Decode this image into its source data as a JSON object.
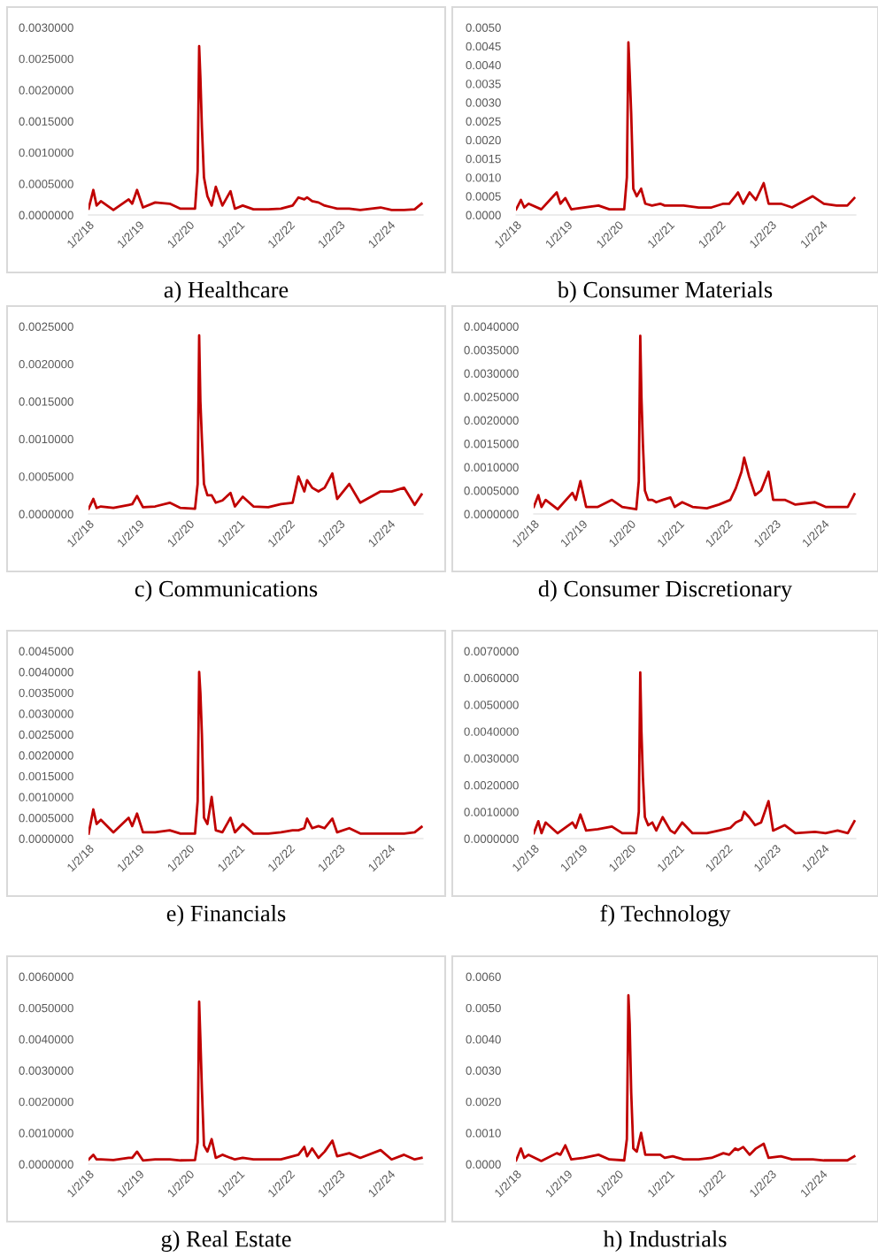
{
  "chart_data": [
    {
      "type": "line",
      "title": "a) Healthcare",
      "x": [
        "2018-01-02",
        "2018-02-05",
        "2018-03-01",
        "2018-04-01",
        "2018-07-01",
        "2018-10-20",
        "2018-11-15",
        "2018-12-20",
        "2019-02-01",
        "2019-05-01",
        "2019-08-15",
        "2019-11-01",
        "2020-02-15",
        "2020-03-05",
        "2020-03-16",
        "2020-03-25",
        "2020-04-05",
        "2020-04-20",
        "2020-05-15",
        "2020-06-15",
        "2020-07-15",
        "2020-09-01",
        "2020-10-30",
        "2020-12-01",
        "2021-01-27",
        "2021-04-15",
        "2021-08-01",
        "2021-11-01",
        "2022-01-25",
        "2022-03-08",
        "2022-04-20",
        "2022-05-10",
        "2022-06-16",
        "2022-08-01",
        "2022-09-15",
        "2022-11-10",
        "2022-12-15",
        "2023-03-13",
        "2023-06-01",
        "2023-10-27",
        "2024-01-15",
        "2024-04-15",
        "2024-07-01",
        "2024-08-20"
      ],
      "series": [
        {
          "color": "#c00000",
          "values": [
            0.0001,
            0.0004,
            0.00015,
            0.00022,
            8e-05,
            0.00025,
            0.00018,
            0.0004,
            0.00012,
            0.0002,
            0.00018,
            0.0001,
            0.0001,
            0.0007,
            0.0027,
            0.0022,
            0.0014,
            0.0006,
            0.0003,
            0.00015,
            0.00045,
            0.00015,
            0.00038,
            0.0001,
            0.00015,
            9e-05,
            9e-05,
            0.0001,
            0.00015,
            0.00028,
            0.00025,
            0.00028,
            0.00022,
            0.0002,
            0.00015,
            0.00012,
            0.0001,
            0.0001,
            8e-05,
            0.00012,
            8e-05,
            8e-05,
            9e-05,
            0.00018
          ]
        }
      ],
      "xlim": [
        "2018-01-01",
        "2024-08-31"
      ],
      "xticks": [
        {
          "value": "2018-01-02",
          "label": "1/2/18"
        },
        {
          "value": "2019-01-02",
          "label": "1/2/19"
        },
        {
          "value": "2020-01-02",
          "label": "1/2/20"
        },
        {
          "value": "2021-01-02",
          "label": "1/2/21"
        },
        {
          "value": "2022-01-02",
          "label": "1/2/22"
        },
        {
          "value": "2023-01-02",
          "label": "1/2/23"
        },
        {
          "value": "2024-01-02",
          "label": "1/2/24"
        }
      ],
      "ylim": [
        0,
        0.003
      ],
      "yticks": [
        {
          "value": 0,
          "label": "0.0000000"
        },
        {
          "value": 0.0005,
          "label": "0.0005000"
        },
        {
          "value": 0.001,
          "label": "0.0010000"
        },
        {
          "value": 0.0015,
          "label": "0.0015000"
        },
        {
          "value": 0.002,
          "label": "0.0020000"
        },
        {
          "value": 0.0025,
          "label": "0.0025000"
        },
        {
          "value": 0.003,
          "label": "0.0030000"
        }
      ]
    },
    {
      "type": "line",
      "title": "b) Consumer Materials",
      "x": [
        "2018-01-02",
        "2018-02-05",
        "2018-03-01",
        "2018-04-01",
        "2018-07-01",
        "2018-10-20",
        "2018-11-15",
        "2018-12-20",
        "2019-02-01",
        "2019-05-01",
        "2019-08-15",
        "2019-11-01",
        "2020-02-15",
        "2020-03-05",
        "2020-03-16",
        "2020-03-25",
        "2020-04-05",
        "2020-04-20",
        "2020-05-15",
        "2020-06-15",
        "2020-07-15",
        "2020-09-01",
        "2020-10-30",
        "2020-12-01",
        "2021-01-27",
        "2021-04-15",
        "2021-08-01",
        "2021-11-01",
        "2022-01-25",
        "2022-03-08",
        "2022-04-20",
        "2022-05-10",
        "2022-06-16",
        "2022-08-01",
        "2022-09-15",
        "2022-11-10",
        "2022-12-15",
        "2023-03-13",
        "2023-06-01",
        "2023-10-27",
        "2024-01-15",
        "2024-04-15",
        "2024-07-01",
        "2024-08-20"
      ],
      "series": [
        {
          "color": "#c00000",
          "values": [
            0.00015,
            0.0004,
            0.0002,
            0.0003,
            0.00015,
            0.0006,
            0.0003,
            0.00045,
            0.00015,
            0.0002,
            0.00025,
            0.00015,
            0.00015,
            0.001,
            0.0046,
            0.0038,
            0.0027,
            0.0007,
            0.0005,
            0.0007,
            0.0003,
            0.00025,
            0.0003,
            0.00025,
            0.00025,
            0.00025,
            0.0002,
            0.0002,
            0.0003,
            0.0003,
            0.0005,
            0.0006,
            0.0003,
            0.0006,
            0.0004,
            0.00085,
            0.0003,
            0.0003,
            0.0002,
            0.0005,
            0.0003,
            0.00025,
            0.00025,
            0.00045
          ]
        }
      ],
      "xlim": [
        "2018-01-01",
        "2024-08-31"
      ],
      "xticks": [
        {
          "value": "2018-01-02",
          "label": "1/2/18"
        },
        {
          "value": "2019-01-02",
          "label": "1/2/19"
        },
        {
          "value": "2020-01-02",
          "label": "1/2/20"
        },
        {
          "value": "2021-01-02",
          "label": "1/2/21"
        },
        {
          "value": "2022-01-02",
          "label": "1/2/22"
        },
        {
          "value": "2023-01-02",
          "label": "1/2/23"
        },
        {
          "value": "2024-01-02",
          "label": "1/2/24"
        }
      ],
      "ylim": [
        0,
        0.005
      ],
      "yticks": [
        {
          "value": 0,
          "label": "0.0000"
        },
        {
          "value": 0.0005,
          "label": "0.0005"
        },
        {
          "value": 0.001,
          "label": "0.0010"
        },
        {
          "value": 0.0015,
          "label": "0.0015"
        },
        {
          "value": 0.002,
          "label": "0.0020"
        },
        {
          "value": 0.0025,
          "label": "0.0025"
        },
        {
          "value": 0.003,
          "label": "0.0030"
        },
        {
          "value": 0.0035,
          "label": "0.0035"
        },
        {
          "value": 0.004,
          "label": "0.0040"
        },
        {
          "value": 0.0045,
          "label": "0.0045"
        },
        {
          "value": 0.005,
          "label": "0.0050"
        }
      ]
    },
    {
      "type": "line",
      "title": "c) Communications",
      "x": [
        "2018-01-02",
        "2018-02-05",
        "2018-03-01",
        "2018-04-01",
        "2018-07-01",
        "2018-10-20",
        "2018-11-15",
        "2018-12-20",
        "2019-02-01",
        "2019-05-01",
        "2019-08-15",
        "2019-11-01",
        "2020-02-15",
        "2020-03-05",
        "2020-03-16",
        "2020-03-25",
        "2020-04-05",
        "2020-04-20",
        "2020-05-15",
        "2020-06-15",
        "2020-07-15",
        "2020-09-01",
        "2020-10-30",
        "2020-12-01",
        "2021-01-27",
        "2021-04-15",
        "2021-08-01",
        "2021-11-01",
        "2022-01-25",
        "2022-03-08",
        "2022-04-20",
        "2022-05-10",
        "2022-06-16",
        "2022-08-01",
        "2022-09-15",
        "2022-11-10",
        "2022-12-15",
        "2023-03-13",
        "2023-06-01",
        "2023-10-27",
        "2024-01-15",
        "2024-04-15",
        "2024-07-01",
        "2024-08-20"
      ],
      "series": [
        {
          "color": "#c00000",
          "values": [
            7e-05,
            0.0002,
            8e-05,
            0.0001,
            8e-05,
            0.00012,
            0.00013,
            0.00024,
            9e-05,
            0.0001,
            0.00015,
            8e-05,
            7e-05,
            0.0004,
            0.00238,
            0.0015,
            0.001,
            0.0004,
            0.00025,
            0.00025,
            0.00015,
            0.00018,
            0.00028,
            0.0001,
            0.00023,
            0.0001,
            9e-05,
            0.00013,
            0.00015,
            0.0005,
            0.0003,
            0.00045,
            0.00035,
            0.0003,
            0.00035,
            0.00054,
            0.0002,
            0.0004,
            0.00015,
            0.0003,
            0.0003,
            0.00035,
            0.00012,
            0.00026
          ]
        }
      ],
      "xlim": [
        "2018-01-01",
        "2024-08-31"
      ],
      "xticks": [
        {
          "value": "2018-01-02",
          "label": "1/2/18"
        },
        {
          "value": "2019-01-02",
          "label": "1/2/19"
        },
        {
          "value": "2020-01-02",
          "label": "1/2/20"
        },
        {
          "value": "2021-01-02",
          "label": "1/2/21"
        },
        {
          "value": "2022-01-02",
          "label": "1/2/22"
        },
        {
          "value": "2023-01-02",
          "label": "1/2/23"
        },
        {
          "value": "2024-01-02",
          "label": "1/2/24"
        }
      ],
      "ylim": [
        0,
        0.0025
      ],
      "yticks": [
        {
          "value": 0,
          "label": "0.0000000"
        },
        {
          "value": 0.0005,
          "label": "0.0005000"
        },
        {
          "value": 0.001,
          "label": "0.0010000"
        },
        {
          "value": 0.0015,
          "label": "0.0015000"
        },
        {
          "value": 0.002,
          "label": "0.0020000"
        },
        {
          "value": 0.0025,
          "label": "0.0025000"
        }
      ]
    },
    {
      "type": "line",
      "title": "d) Consumer Discretionary",
      "x": [
        "2018-01-02",
        "2018-02-05",
        "2018-03-01",
        "2018-04-01",
        "2018-07-01",
        "2018-10-20",
        "2018-11-15",
        "2018-12-20",
        "2019-02-01",
        "2019-05-01",
        "2019-08-15",
        "2019-11-01",
        "2020-02-15",
        "2020-03-05",
        "2020-03-16",
        "2020-03-25",
        "2020-04-05",
        "2020-04-20",
        "2020-05-15",
        "2020-06-15",
        "2020-07-15",
        "2020-09-01",
        "2020-10-30",
        "2020-12-01",
        "2021-01-27",
        "2021-04-15",
        "2021-08-01",
        "2021-11-01",
        "2022-01-25",
        "2022-03-08",
        "2022-04-20",
        "2022-05-10",
        "2022-06-16",
        "2022-08-01",
        "2022-09-15",
        "2022-11-10",
        "2022-12-15",
        "2023-03-13",
        "2023-06-01",
        "2023-10-27",
        "2024-01-15",
        "2024-04-15",
        "2024-07-01",
        "2024-08-20"
      ],
      "series": [
        {
          "color": "#c00000",
          "values": [
            0.00015,
            0.0004,
            0.00015,
            0.0003,
            0.0001,
            0.00045,
            0.0003,
            0.0007,
            0.00015,
            0.00015,
            0.0003,
            0.00015,
            0.0001,
            0.0007,
            0.0038,
            0.0025,
            0.0015,
            0.0005,
            0.0003,
            0.0003,
            0.00025,
            0.0003,
            0.00035,
            0.00015,
            0.00025,
            0.00015,
            0.00012,
            0.0002,
            0.0003,
            0.00055,
            0.0009,
            0.0012,
            0.0008,
            0.0004,
            0.0005,
            0.0009,
            0.0003,
            0.0003,
            0.0002,
            0.00025,
            0.00015,
            0.00015,
            0.00015,
            0.00042
          ]
        }
      ],
      "xlim": [
        "2018-01-01",
        "2024-08-31"
      ],
      "xticks": [
        {
          "value": "2018-01-02",
          "label": "1/2/18"
        },
        {
          "value": "2019-01-02",
          "label": "1/2/19"
        },
        {
          "value": "2020-01-02",
          "label": "1/2/20"
        },
        {
          "value": "2021-01-02",
          "label": "1/2/21"
        },
        {
          "value": "2022-01-02",
          "label": "1/2/22"
        },
        {
          "value": "2023-01-02",
          "label": "1/2/23"
        },
        {
          "value": "2024-01-02",
          "label": "1/2/24"
        }
      ],
      "ylim": [
        0,
        0.004
      ],
      "yticks": [
        {
          "value": 0,
          "label": "0.0000000"
        },
        {
          "value": 0.0005,
          "label": "0.0005000"
        },
        {
          "value": 0.001,
          "label": "0.0010000"
        },
        {
          "value": 0.0015,
          "label": "0.0015000"
        },
        {
          "value": 0.002,
          "label": "0.0020000"
        },
        {
          "value": 0.0025,
          "label": "0.0025000"
        },
        {
          "value": 0.003,
          "label": "0.0030000"
        },
        {
          "value": 0.0035,
          "label": "0.0035000"
        },
        {
          "value": 0.004,
          "label": "0.0040000"
        }
      ]
    },
    {
      "type": "line",
      "title": "e) Financials",
      "x": [
        "2018-01-02",
        "2018-02-05",
        "2018-03-01",
        "2018-04-01",
        "2018-07-01",
        "2018-10-20",
        "2018-11-15",
        "2018-12-20",
        "2019-02-01",
        "2019-05-01",
        "2019-08-15",
        "2019-11-01",
        "2020-02-15",
        "2020-03-05",
        "2020-03-16",
        "2020-03-25",
        "2020-04-05",
        "2020-04-20",
        "2020-05-15",
        "2020-06-15",
        "2020-07-15",
        "2020-09-01",
        "2020-10-30",
        "2020-12-01",
        "2021-01-27",
        "2021-04-15",
        "2021-08-01",
        "2021-11-01",
        "2022-01-25",
        "2022-03-08",
        "2022-04-20",
        "2022-05-10",
        "2022-06-16",
        "2022-08-01",
        "2022-09-15",
        "2022-11-10",
        "2022-12-15",
        "2023-03-13",
        "2023-06-01",
        "2023-10-27",
        "2024-01-15",
        "2024-04-15",
        "2024-07-01",
        "2024-08-20"
      ],
      "series": [
        {
          "color": "#c00000",
          "values": [
            0.00012,
            0.0007,
            0.00035,
            0.00045,
            0.00015,
            0.0005,
            0.0003,
            0.0006,
            0.00015,
            0.00015,
            0.0002,
            0.00012,
            0.00012,
            0.0009,
            0.004,
            0.0035,
            0.0025,
            0.0005,
            0.00035,
            0.001,
            0.0002,
            0.00015,
            0.0005,
            0.00015,
            0.00035,
            0.00012,
            0.00012,
            0.00015,
            0.0002,
            0.0002,
            0.00025,
            0.00048,
            0.00025,
            0.0003,
            0.00025,
            0.00048,
            0.00015,
            0.00025,
            0.00012,
            0.00012,
            0.00012,
            0.00012,
            0.00015,
            0.00028
          ]
        }
      ],
      "xlim": [
        "2018-01-01",
        "2024-08-31"
      ],
      "xticks": [
        {
          "value": "2018-01-02",
          "label": "1/2/18"
        },
        {
          "value": "2019-01-02",
          "label": "1/2/19"
        },
        {
          "value": "2020-01-02",
          "label": "1/2/20"
        },
        {
          "value": "2021-01-02",
          "label": "1/2/21"
        },
        {
          "value": "2022-01-02",
          "label": "1/2/22"
        },
        {
          "value": "2023-01-02",
          "label": "1/2/23"
        },
        {
          "value": "2024-01-02",
          "label": "1/2/24"
        }
      ],
      "ylim": [
        0,
        0.0045
      ],
      "yticks": [
        {
          "value": 0,
          "label": "0.0000000"
        },
        {
          "value": 0.0005,
          "label": "0.0005000"
        },
        {
          "value": 0.001,
          "label": "0.0010000"
        },
        {
          "value": 0.0015,
          "label": "0.0015000"
        },
        {
          "value": 0.002,
          "label": "0.0020000"
        },
        {
          "value": 0.0025,
          "label": "0.0025000"
        },
        {
          "value": 0.003,
          "label": "0.0030000"
        },
        {
          "value": 0.0035,
          "label": "0.0035000"
        },
        {
          "value": 0.004,
          "label": "0.0040000"
        },
        {
          "value": 0.0045,
          "label": "0.0045000"
        }
      ]
    },
    {
      "type": "line",
      "title": "f) Technology",
      "x": [
        "2018-01-02",
        "2018-02-05",
        "2018-03-01",
        "2018-04-01",
        "2018-07-01",
        "2018-10-20",
        "2018-11-15",
        "2018-12-20",
        "2019-02-01",
        "2019-05-01",
        "2019-08-15",
        "2019-11-01",
        "2020-02-15",
        "2020-03-05",
        "2020-03-16",
        "2020-03-25",
        "2020-04-05",
        "2020-04-20",
        "2020-05-15",
        "2020-06-15",
        "2020-07-15",
        "2020-09-01",
        "2020-10-30",
        "2020-12-01",
        "2021-01-27",
        "2021-04-15",
        "2021-08-01",
        "2021-11-01",
        "2022-01-25",
        "2022-03-08",
        "2022-04-20",
        "2022-05-10",
        "2022-06-16",
        "2022-08-01",
        "2022-09-15",
        "2022-11-10",
        "2022-12-15",
        "2023-03-13",
        "2023-06-01",
        "2023-10-27",
        "2024-01-15",
        "2024-04-15",
        "2024-07-01",
        "2024-08-20"
      ],
      "series": [
        {
          "color": "#c00000",
          "values": [
            0.0002,
            0.00065,
            0.0002,
            0.0006,
            0.0002,
            0.0006,
            0.0004,
            0.0009,
            0.0003,
            0.00035,
            0.00045,
            0.0002,
            0.0002,
            0.001,
            0.0062,
            0.004,
            0.0023,
            0.0008,
            0.0005,
            0.0006,
            0.0003,
            0.0008,
            0.0003,
            0.0002,
            0.0006,
            0.0002,
            0.0002,
            0.0003,
            0.0004,
            0.0006,
            0.0007,
            0.001,
            0.0008,
            0.0005,
            0.0006,
            0.0014,
            0.0003,
            0.0005,
            0.0002,
            0.00025,
            0.0002,
            0.0003,
            0.0002,
            0.00065
          ]
        }
      ],
      "xlim": [
        "2018-01-01",
        "2024-08-31"
      ],
      "xticks": [
        {
          "value": "2018-01-02",
          "label": "1/2/18"
        },
        {
          "value": "2019-01-02",
          "label": "1/2/19"
        },
        {
          "value": "2020-01-02",
          "label": "1/2/20"
        },
        {
          "value": "2021-01-02",
          "label": "1/2/21"
        },
        {
          "value": "2022-01-02",
          "label": "1/2/22"
        },
        {
          "value": "2023-01-02",
          "label": "1/2/23"
        },
        {
          "value": "2024-01-02",
          "label": "1/2/24"
        }
      ],
      "ylim": [
        0,
        0.007
      ],
      "yticks": [
        {
          "value": 0,
          "label": "0.0000000"
        },
        {
          "value": 0.001,
          "label": "0.0010000"
        },
        {
          "value": 0.002,
          "label": "0.0020000"
        },
        {
          "value": 0.003,
          "label": "0.0030000"
        },
        {
          "value": 0.004,
          "label": "0.0040000"
        },
        {
          "value": 0.005,
          "label": "0.0050000"
        },
        {
          "value": 0.006,
          "label": "0.0060000"
        },
        {
          "value": 0.007,
          "label": "0.0070000"
        }
      ]
    },
    {
      "type": "line",
      "title": "g) Real Estate",
      "x": [
        "2018-01-02",
        "2018-02-05",
        "2018-03-01",
        "2018-04-01",
        "2018-07-01",
        "2018-10-20",
        "2018-11-15",
        "2018-12-20",
        "2019-02-01",
        "2019-05-01",
        "2019-08-15",
        "2019-11-01",
        "2020-02-15",
        "2020-03-05",
        "2020-03-16",
        "2020-03-25",
        "2020-04-05",
        "2020-04-20",
        "2020-05-15",
        "2020-06-15",
        "2020-07-15",
        "2020-09-01",
        "2020-10-30",
        "2020-12-01",
        "2021-01-27",
        "2021-04-15",
        "2021-08-01",
        "2021-11-01",
        "2022-01-25",
        "2022-03-08",
        "2022-04-20",
        "2022-05-10",
        "2022-06-16",
        "2022-08-01",
        "2022-09-15",
        "2022-11-10",
        "2022-12-15",
        "2023-03-13",
        "2023-06-01",
        "2023-10-27",
        "2024-01-15",
        "2024-04-15",
        "2024-07-01",
        "2024-08-20"
      ],
      "series": [
        {
          "color": "#c00000",
          "values": [
            0.00015,
            0.0003,
            0.00015,
            0.00015,
            0.00013,
            0.0002,
            0.0002,
            0.0004,
            0.00012,
            0.00015,
            0.00015,
            0.00012,
            0.00013,
            0.0007,
            0.0052,
            0.004,
            0.0024,
            0.0006,
            0.0004,
            0.0008,
            0.0002,
            0.0003,
            0.0002,
            0.00015,
            0.0002,
            0.00015,
            0.00015,
            0.00015,
            0.00025,
            0.0003,
            0.00055,
            0.00025,
            0.0005,
            0.0002,
            0.0004,
            0.00075,
            0.00025,
            0.00035,
            0.0002,
            0.00045,
            0.00015,
            0.0003,
            0.00015,
            0.0002
          ]
        }
      ],
      "xlim": [
        "2018-01-01",
        "2024-08-31"
      ],
      "xticks": [
        {
          "value": "2018-01-02",
          "label": "1/2/18"
        },
        {
          "value": "2019-01-02",
          "label": "1/2/19"
        },
        {
          "value": "2020-01-02",
          "label": "1/2/20"
        },
        {
          "value": "2021-01-02",
          "label": "1/2/21"
        },
        {
          "value": "2022-01-02",
          "label": "1/2/22"
        },
        {
          "value": "2023-01-02",
          "label": "1/2/23"
        },
        {
          "value": "2024-01-02",
          "label": "1/2/24"
        }
      ],
      "ylim": [
        0,
        0.006
      ],
      "yticks": [
        {
          "value": 0,
          "label": "0.0000000"
        },
        {
          "value": 0.001,
          "label": "0.0010000"
        },
        {
          "value": 0.002,
          "label": "0.0020000"
        },
        {
          "value": 0.003,
          "label": "0.0030000"
        },
        {
          "value": 0.004,
          "label": "0.0040000"
        },
        {
          "value": 0.005,
          "label": "0.0050000"
        },
        {
          "value": 0.006,
          "label": "0.0060000"
        }
      ]
    },
    {
      "type": "line",
      "title": "h) Industrials",
      "x": [
        "2018-01-02",
        "2018-02-05",
        "2018-03-01",
        "2018-04-01",
        "2018-07-01",
        "2018-10-20",
        "2018-11-15",
        "2018-12-20",
        "2019-02-01",
        "2019-05-01",
        "2019-08-15",
        "2019-11-01",
        "2020-02-15",
        "2020-03-05",
        "2020-03-16",
        "2020-03-25",
        "2020-04-05",
        "2020-04-20",
        "2020-05-15",
        "2020-06-15",
        "2020-07-15",
        "2020-09-01",
        "2020-10-30",
        "2020-12-01",
        "2021-01-27",
        "2021-04-15",
        "2021-08-01",
        "2021-11-01",
        "2022-01-25",
        "2022-03-08",
        "2022-04-20",
        "2022-05-10",
        "2022-06-16",
        "2022-08-01",
        "2022-09-15",
        "2022-11-10",
        "2022-12-15",
        "2023-03-13",
        "2023-06-01",
        "2023-10-27",
        "2024-01-15",
        "2024-04-15",
        "2024-07-01",
        "2024-08-20"
      ],
      "series": [
        {
          "color": "#c00000",
          "values": [
            0.00012,
            0.0005,
            0.0002,
            0.0003,
            0.0001,
            0.00035,
            0.0003,
            0.0006,
            0.00015,
            0.0002,
            0.0003,
            0.00015,
            0.00012,
            0.0008,
            0.0054,
            0.0045,
            0.0023,
            0.0005,
            0.0004,
            0.001,
            0.0003,
            0.0003,
            0.0003,
            0.0002,
            0.00025,
            0.00015,
            0.00015,
            0.0002,
            0.00035,
            0.0003,
            0.0005,
            0.00045,
            0.00055,
            0.0003,
            0.0005,
            0.00065,
            0.0002,
            0.00025,
            0.00015,
            0.00015,
            0.00012,
            0.00012,
            0.00012,
            0.00025
          ]
        }
      ],
      "xlim": [
        "2018-01-01",
        "2024-08-31"
      ],
      "xticks": [
        {
          "value": "2018-01-02",
          "label": "1/2/18"
        },
        {
          "value": "2019-01-02",
          "label": "1/2/19"
        },
        {
          "value": "2020-01-02",
          "label": "1/2/20"
        },
        {
          "value": "2021-01-02",
          "label": "1/2/21"
        },
        {
          "value": "2022-01-02",
          "label": "1/2/22"
        },
        {
          "value": "2023-01-02",
          "label": "1/2/23"
        },
        {
          "value": "2024-01-02",
          "label": "1/2/24"
        }
      ],
      "ylim": [
        0,
        0.006
      ],
      "yticks": [
        {
          "value": 0,
          "label": "0.0000"
        },
        {
          "value": 0.001,
          "label": "0.0010"
        },
        {
          "value": 0.002,
          "label": "0.0020"
        },
        {
          "value": 0.003,
          "label": "0.0030"
        },
        {
          "value": 0.004,
          "label": "0.0040"
        },
        {
          "value": 0.005,
          "label": "0.0050"
        },
        {
          "value": 0.006,
          "label": "0.0060"
        }
      ]
    }
  ]
}
